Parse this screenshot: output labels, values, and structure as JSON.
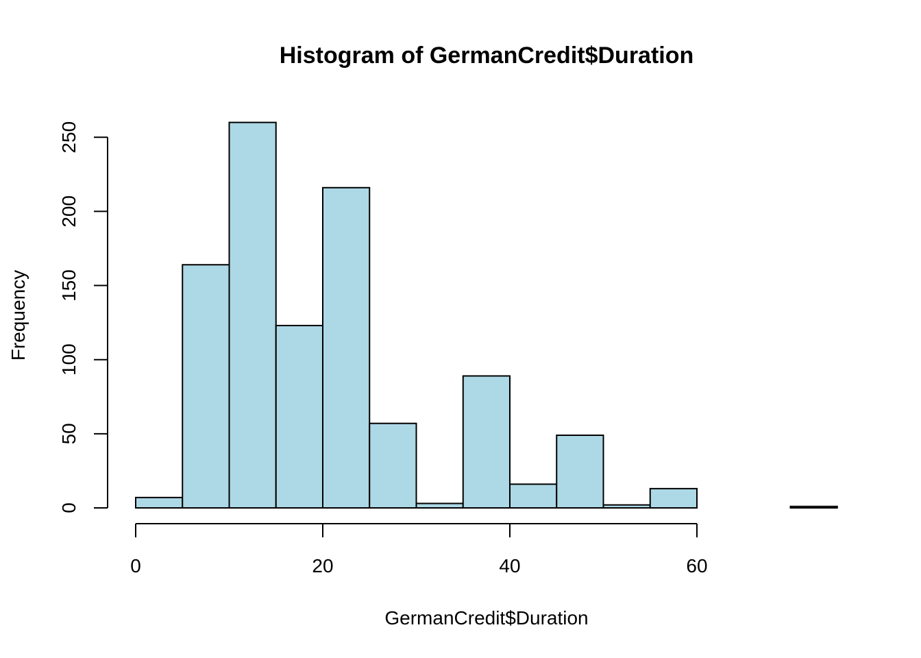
{
  "chart_data": {
    "type": "bar",
    "title": "Histogram of GermanCredit$Duration",
    "xlabel": "GermanCredit$Duration",
    "ylabel": "Frequency",
    "bin_edges": [
      0,
      5,
      10,
      15,
      20,
      25,
      30,
      35,
      40,
      45,
      50,
      55,
      60,
      65,
      70,
      75
    ],
    "values": [
      7,
      164,
      260,
      123,
      216,
      57,
      3,
      89,
      16,
      49,
      2,
      13,
      0,
      0,
      1
    ],
    "xlim": [
      0,
      75
    ],
    "ylim": [
      0,
      260
    ],
    "x_ticks": [
      0,
      20,
      40,
      60
    ],
    "y_ticks": [
      0,
      50,
      100,
      150,
      200,
      250
    ],
    "bar_color": "#add8e6",
    "grid": false
  }
}
